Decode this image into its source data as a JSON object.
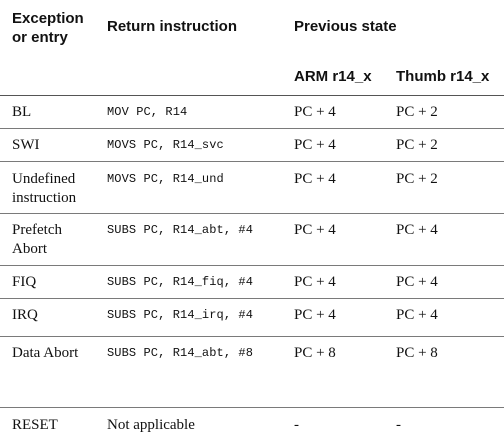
{
  "table": {
    "headers": {
      "exception_line1": "Exception",
      "exception_line2": "or entry",
      "return_instruction": "Return instruction",
      "previous_state": "Previous state",
      "arm": "ARM r14_x",
      "thumb": "Thumb r14_x"
    },
    "rows": [
      {
        "exception": "BL",
        "instruction": "MOV PC, R14",
        "arm": "PC + 4",
        "thumb": "PC + 2"
      },
      {
        "exception": "SWI",
        "instruction": "MOVS PC, R14_svc",
        "arm": "PC + 4",
        "thumb": "PC + 2"
      },
      {
        "exception_line1": "Undefined",
        "exception_line2": "instruction",
        "instruction": "MOVS PC, R14_und",
        "arm": "PC + 4",
        "thumb": "PC + 2"
      },
      {
        "exception_line1": "Prefetch",
        "exception_line2": "Abort",
        "instruction": "SUBS PC, R14_abt, #4",
        "arm": "PC + 4",
        "thumb": "PC + 4"
      },
      {
        "exception": "FIQ",
        "instruction": "SUBS PC, R14_fiq, #4",
        "arm": "PC + 4",
        "thumb": "PC + 4"
      },
      {
        "exception": "IRQ",
        "instruction": "SUBS PC, R14_irq, #4",
        "arm": "PC + 4",
        "thumb": "PC + 4"
      },
      {
        "exception": "Data Abort",
        "instruction": "SUBS PC, R14_abt, #8",
        "arm": "PC + 8",
        "thumb": "PC + 8"
      },
      {
        "exception": "RESET",
        "instruction": "Not applicable",
        "arm": "-",
        "thumb": "-"
      }
    ]
  }
}
